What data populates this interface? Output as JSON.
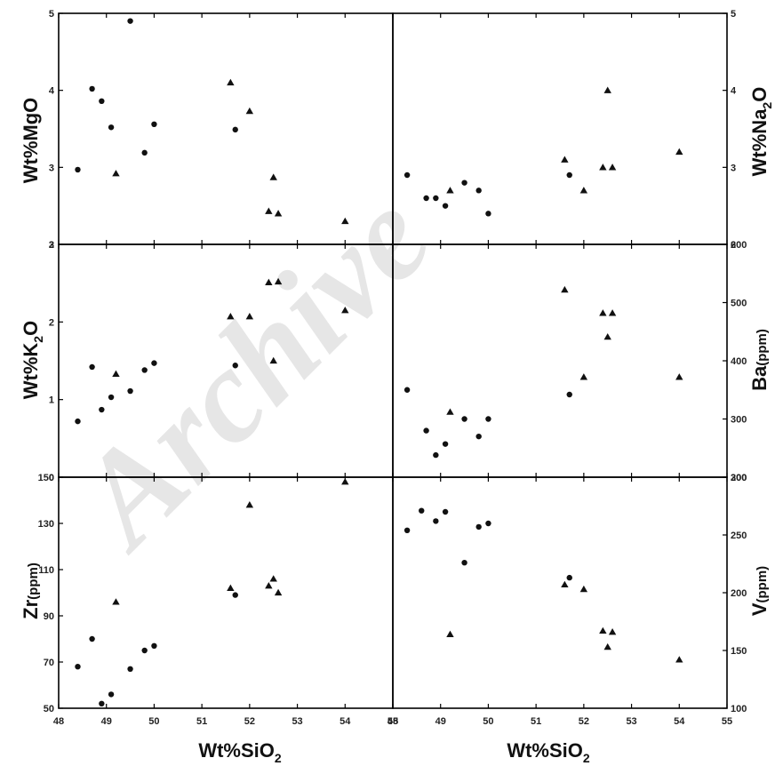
{
  "watermark": "Archive",
  "colors": {
    "axis": "#000000",
    "marker": "#111111",
    "watermark": "#e6e6e6"
  },
  "x_axis": {
    "label_main": "Wt%SiO",
    "label_sub": "2",
    "ticks": [
      "48",
      "49",
      "50",
      "51",
      "52",
      "53",
      "54",
      "55"
    ]
  },
  "chart_data": [
    {
      "type": "scatter",
      "panel": "MgO",
      "ylabel_main": "Wt%MgO",
      "ylabel_sub": "",
      "ylabel_unit": "",
      "xlim": [
        48,
        55
      ],
      "ylim": [
        2,
        5
      ],
      "ticks": [
        "2",
        "3",
        "4",
        "5"
      ],
      "axis_side": "left",
      "series": [
        {
          "marker": "circle",
          "points": [
            [
              48.4,
              2.97
            ],
            [
              48.7,
              4.02
            ],
            [
              48.9,
              3.86
            ],
            [
              49.1,
              3.52
            ],
            [
              49.5,
              4.9
            ],
            [
              49.8,
              3.19
            ],
            [
              50.0,
              3.56
            ],
            [
              51.7,
              3.49
            ]
          ]
        },
        {
          "marker": "triangle",
          "points": [
            [
              49.2,
              2.92
            ],
            [
              51.6,
              4.1
            ],
            [
              52.0,
              3.73
            ],
            [
              52.4,
              2.43
            ],
            [
              52.5,
              2.87
            ],
            [
              52.6,
              2.4
            ],
            [
              54.0,
              2.3
            ]
          ]
        }
      ]
    },
    {
      "type": "scatter",
      "panel": "Na2O",
      "ylabel_main": "Wt%Na",
      "ylabel_sub": "2",
      "ylabel_unit": "O",
      "xlim": [
        48,
        55
      ],
      "ylim": [
        2,
        5
      ],
      "ticks": [
        "2",
        "3",
        "4",
        "5"
      ],
      "axis_side": "right",
      "series": [
        {
          "marker": "circle",
          "points": [
            [
              48.3,
              2.9
            ],
            [
              48.7,
              2.6
            ],
            [
              48.9,
              2.6
            ],
            [
              49.1,
              2.5
            ],
            [
              49.5,
              2.8
            ],
            [
              49.8,
              2.7
            ],
            [
              50.0,
              2.4
            ],
            [
              51.7,
              2.9
            ]
          ]
        },
        {
          "marker": "triangle",
          "points": [
            [
              49.2,
              2.7
            ],
            [
              51.6,
              3.1
            ],
            [
              52.0,
              2.7
            ],
            [
              52.4,
              3.0
            ],
            [
              52.5,
              4.0
            ],
            [
              52.6,
              3.0
            ],
            [
              54.0,
              3.2
            ]
          ]
        }
      ]
    },
    {
      "type": "scatter",
      "panel": "K2O",
      "ylabel_main": "Wt%K",
      "ylabel_sub": "2",
      "ylabel_unit": "O",
      "xlim": [
        48,
        55
      ],
      "ylim": [
        0,
        3
      ],
      "ticks": [
        "0",
        "1",
        "2",
        "3"
      ],
      "axis_side": "left",
      "series": [
        {
          "marker": "circle",
          "points": [
            [
              48.4,
              0.72
            ],
            [
              48.7,
              1.42
            ],
            [
              48.9,
              0.87
            ],
            [
              49.1,
              1.03
            ],
            [
              49.5,
              1.11
            ],
            [
              49.8,
              1.38
            ],
            [
              50.0,
              1.47
            ],
            [
              51.7,
              1.44
            ]
          ]
        },
        {
          "marker": "triangle",
          "points": [
            [
              49.2,
              1.33
            ],
            [
              51.6,
              2.07
            ],
            [
              52.0,
              2.07
            ],
            [
              52.4,
              2.51
            ],
            [
              52.5,
              1.5
            ],
            [
              52.6,
              2.52
            ],
            [
              54.0,
              2.15
            ]
          ]
        }
      ]
    },
    {
      "type": "scatter",
      "panel": "Ba",
      "ylabel_main": "Ba",
      "ylabel_sub": "",
      "ylabel_unit": "(ppm)",
      "xlim": [
        48,
        55
      ],
      "ylim": [
        200,
        600
      ],
      "ticks": [
        "200",
        "300",
        "400",
        "500",
        "600"
      ],
      "axis_side": "right",
      "series": [
        {
          "marker": "circle",
          "points": [
            [
              48.3,
              350
            ],
            [
              48.7,
              280
            ],
            [
              48.9,
              238
            ],
            [
              49.1,
              257
            ],
            [
              49.5,
              300
            ],
            [
              49.8,
              270
            ],
            [
              50.0,
              300
            ],
            [
              51.7,
              342
            ]
          ]
        },
        {
          "marker": "triangle",
          "points": [
            [
              49.2,
              312
            ],
            [
              51.6,
              522
            ],
            [
              52.0,
              372
            ],
            [
              52.4,
              482
            ],
            [
              52.5,
              441
            ],
            [
              52.6,
              482
            ],
            [
              54.0,
              372
            ]
          ]
        }
      ]
    },
    {
      "type": "scatter",
      "panel": "Zr",
      "ylabel_main": "Zr",
      "ylabel_sub": "",
      "ylabel_unit": "(ppm)",
      "xlim": [
        48,
        55
      ],
      "ylim": [
        50,
        150
      ],
      "ticks": [
        "50",
        "70",
        "90",
        "110",
        "130",
        "150"
      ],
      "axis_side": "left",
      "series": [
        {
          "marker": "circle",
          "points": [
            [
              48.4,
              68
            ],
            [
              48.7,
              80
            ],
            [
              48.9,
              52
            ],
            [
              49.1,
              56
            ],
            [
              49.5,
              67
            ],
            [
              49.8,
              75
            ],
            [
              50.0,
              77
            ],
            [
              51.7,
              99
            ]
          ]
        },
        {
          "marker": "triangle",
          "points": [
            [
              49.2,
              96
            ],
            [
              51.6,
              102
            ],
            [
              52.0,
              138
            ],
            [
              52.4,
              103
            ],
            [
              52.5,
              106
            ],
            [
              52.6,
              100
            ],
            [
              54.0,
              148
            ]
          ]
        }
      ]
    },
    {
      "type": "scatter",
      "panel": "V",
      "ylabel_main": "V",
      "ylabel_sub": "",
      "ylabel_unit": "(ppm)",
      "xlim": [
        48,
        55
      ],
      "ylim": [
        100,
        300
      ],
      "ticks": [
        "100",
        "150",
        "200",
        "250",
        "300"
      ],
      "axis_side": "right",
      "series": [
        {
          "marker": "circle",
          "points": [
            [
              48.3,
              254
            ],
            [
              48.6,
              271
            ],
            [
              48.9,
              262
            ],
            [
              49.1,
              270
            ],
            [
              49.5,
              226
            ],
            [
              49.8,
              257
            ],
            [
              50.0,
              260
            ],
            [
              51.7,
              213
            ]
          ]
        },
        {
          "marker": "triangle",
          "points": [
            [
              49.2,
              164
            ],
            [
              51.6,
              207
            ],
            [
              52.0,
              203
            ],
            [
              52.4,
              167
            ],
            [
              52.5,
              153
            ],
            [
              52.6,
              166
            ],
            [
              54.0,
              142
            ]
          ]
        }
      ]
    }
  ]
}
